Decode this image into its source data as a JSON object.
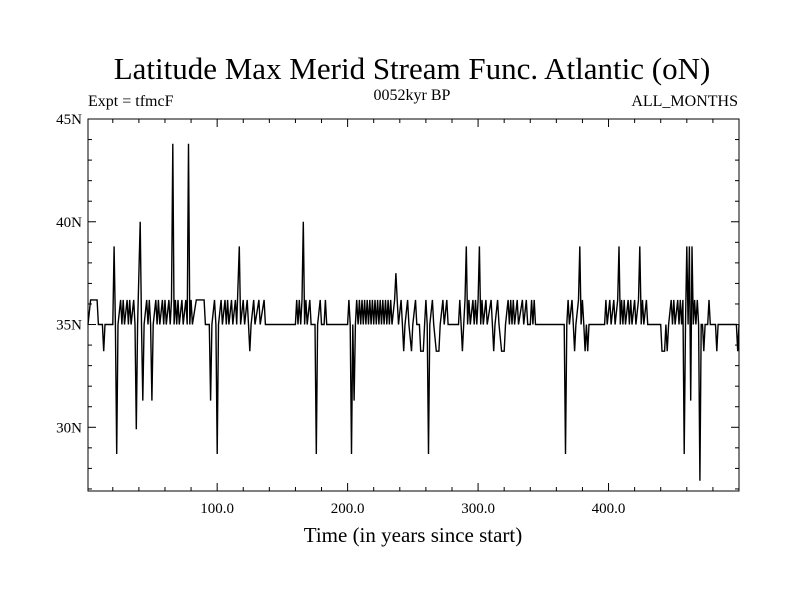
{
  "chart_data": {
    "type": "line",
    "title": "Latitude Max Merid Stream Func. Atlantic (oN)",
    "subtitle_center": "0052kyr BP",
    "subtitle_left": "Expt = tfmcF",
    "subtitle_right": "ALL_MONTHS",
    "xlabel": "Time (in years since start)",
    "ylabel": "",
    "xlim": [
      1,
      500
    ],
    "ylim": [
      26.9,
      45
    ],
    "x_ticks": [
      {
        "value": 100,
        "label": "100.0"
      },
      {
        "value": 200,
        "label": "200.0"
      },
      {
        "value": 300,
        "label": "300.0"
      },
      {
        "value": 400,
        "label": "400.0"
      }
    ],
    "y_ticks": [
      {
        "value": 30,
        "label": "30N"
      },
      {
        "value": 35,
        "label": "35N"
      },
      {
        "value": 40,
        "label": "40N"
      },
      {
        "value": 45,
        "label": "45N"
      }
    ],
    "grid": false,
    "series": [
      {
        "points": [
          [
            1,
            35
          ],
          [
            3,
            36.2
          ],
          [
            8,
            36.2
          ],
          [
            9,
            35
          ],
          [
            12,
            35
          ],
          [
            13,
            33.7
          ],
          [
            14,
            35
          ],
          [
            20,
            35
          ],
          [
            21,
            38.8
          ],
          [
            22,
            35
          ],
          [
            23,
            28.7
          ],
          [
            24,
            35
          ],
          [
            26,
            36.2
          ],
          [
            27,
            35
          ],
          [
            28,
            36.2
          ],
          [
            29,
            35
          ],
          [
            31,
            36.2
          ],
          [
            32,
            35
          ],
          [
            33,
            36.2
          ],
          [
            34,
            35
          ],
          [
            36,
            36.2
          ],
          [
            37,
            35
          ],
          [
            38,
            29.9
          ],
          [
            39,
            35
          ],
          [
            41,
            40
          ],
          [
            42,
            35
          ],
          [
            43,
            31.3
          ],
          [
            44,
            35
          ],
          [
            46,
            36.2
          ],
          [
            47,
            35
          ],
          [
            48,
            36.2
          ],
          [
            49,
            35
          ],
          [
            50,
            31.3
          ],
          [
            51,
            35
          ],
          [
            53,
            36.2
          ],
          [
            54,
            35
          ],
          [
            55,
            36.2
          ],
          [
            56,
            35
          ],
          [
            58,
            36.2
          ],
          [
            59,
            35
          ],
          [
            60,
            36.2
          ],
          [
            61,
            35
          ],
          [
            63,
            36.2
          ],
          [
            64,
            35
          ],
          [
            65,
            36.2
          ],
          [
            66,
            43.8
          ],
          [
            67,
            35
          ],
          [
            68,
            36.2
          ],
          [
            69,
            35
          ],
          [
            70,
            36.2
          ],
          [
            71,
            35
          ],
          [
            73,
            36.2
          ],
          [
            74,
            35
          ],
          [
            76,
            36.2
          ],
          [
            77,
            35
          ],
          [
            78,
            43.8
          ],
          [
            79,
            35
          ],
          [
            80,
            36.2
          ],
          [
            81,
            35
          ],
          [
            84,
            36.2
          ],
          [
            90,
            36.2
          ],
          [
            91,
            35
          ],
          [
            94,
            35
          ],
          [
            95,
            31.3
          ],
          [
            96,
            35
          ],
          [
            98,
            36.2
          ],
          [
            99,
            35
          ],
          [
            100,
            28.7
          ],
          [
            101,
            35
          ],
          [
            103,
            36.2
          ],
          [
            104,
            35
          ],
          [
            106,
            36.2
          ],
          [
            107,
            35
          ],
          [
            108,
            36.2
          ],
          [
            109,
            35
          ],
          [
            111,
            36.2
          ],
          [
            112,
            35
          ],
          [
            114,
            36.2
          ],
          [
            115,
            35
          ],
          [
            117,
            38.8
          ],
          [
            118,
            35
          ],
          [
            120,
            36.2
          ],
          [
            121,
            35
          ],
          [
            123,
            36.2
          ],
          [
            124,
            35
          ],
          [
            125,
            33.7
          ],
          [
            126,
            35
          ],
          [
            128,
            36.2
          ],
          [
            129,
            35
          ],
          [
            132,
            36.2
          ],
          [
            133,
            35
          ],
          [
            136,
            36.2
          ],
          [
            137,
            35
          ],
          [
            160,
            35
          ],
          [
            161,
            36.2
          ],
          [
            162,
            35
          ],
          [
            163,
            36.2
          ],
          [
            164,
            35
          ],
          [
            165,
            36.2
          ],
          [
            166,
            40
          ],
          [
            167,
            35
          ],
          [
            168,
            36.2
          ],
          [
            169,
            35
          ],
          [
            171,
            36.2
          ],
          [
            172,
            35
          ],
          [
            175,
            35
          ],
          [
            176,
            28.7
          ],
          [
            177,
            35
          ],
          [
            179,
            36.2
          ],
          [
            180,
            35
          ],
          [
            182,
            35
          ],
          [
            183,
            36.2
          ],
          [
            184,
            35
          ],
          [
            200,
            35
          ],
          [
            201,
            36.2
          ],
          [
            202,
            35
          ],
          [
            203,
            28.7
          ],
          [
            204,
            35
          ],
          [
            205,
            31.3
          ],
          [
            206,
            35
          ],
          [
            207,
            36.2
          ],
          [
            208,
            35
          ],
          [
            209,
            36.2
          ],
          [
            210,
            35
          ],
          [
            211,
            36.2
          ],
          [
            212,
            35
          ],
          [
            213,
            36.2
          ],
          [
            214,
            35
          ],
          [
            215,
            36.2
          ],
          [
            216,
            35
          ],
          [
            217,
            36.2
          ],
          [
            218,
            35
          ],
          [
            219,
            36.2
          ],
          [
            220,
            35
          ],
          [
            221,
            36.2
          ],
          [
            222,
            35
          ],
          [
            223,
            36.2
          ],
          [
            224,
            35
          ],
          [
            225,
            36.2
          ],
          [
            226,
            35
          ],
          [
            227,
            36.2
          ],
          [
            228,
            35
          ],
          [
            229,
            36.2
          ],
          [
            230,
            35
          ],
          [
            231,
            36.2
          ],
          [
            232,
            35
          ],
          [
            233,
            36.2
          ],
          [
            234,
            35
          ],
          [
            236,
            36.2
          ],
          [
            237,
            37.5
          ],
          [
            238,
            36.2
          ],
          [
            239,
            35
          ],
          [
            241,
            36.2
          ],
          [
            242,
            35
          ],
          [
            243,
            33.7
          ],
          [
            244,
            35
          ],
          [
            246,
            36.2
          ],
          [
            247,
            35
          ],
          [
            249,
            33.7
          ],
          [
            250,
            35
          ],
          [
            252,
            36.2
          ],
          [
            253,
            35
          ],
          [
            255,
            35
          ],
          [
            256,
            33.7
          ],
          [
            258,
            33.7
          ],
          [
            259,
            35
          ],
          [
            260,
            36.2
          ],
          [
            261,
            35
          ],
          [
            262,
            28.7
          ],
          [
            263,
            35
          ],
          [
            265,
            36.2
          ],
          [
            266,
            35
          ],
          [
            268,
            33.7
          ],
          [
            270,
            33.7
          ],
          [
            271,
            35
          ],
          [
            273,
            36.2
          ],
          [
            274,
            35
          ],
          [
            276,
            36.2
          ],
          [
            277,
            35
          ],
          [
            285,
            35
          ],
          [
            286,
            36.2
          ],
          [
            287,
            35
          ],
          [
            288,
            33.7
          ],
          [
            289,
            35
          ],
          [
            290,
            36.2
          ],
          [
            291,
            38.8
          ],
          [
            292,
            35
          ],
          [
            293,
            36.2
          ],
          [
            294,
            35
          ],
          [
            296,
            36.2
          ],
          [
            297,
            35
          ],
          [
            298,
            36.2
          ],
          [
            299,
            35
          ],
          [
            300,
            36.2
          ],
          [
            301,
            38.8
          ],
          [
            302,
            35
          ],
          [
            303,
            36.2
          ],
          [
            304,
            35
          ],
          [
            306,
            36.2
          ],
          [
            307,
            35
          ],
          [
            310,
            36.2
          ],
          [
            311,
            35
          ],
          [
            312,
            33.7
          ],
          [
            313,
            35
          ],
          [
            315,
            36.2
          ],
          [
            316,
            35
          ],
          [
            318,
            33.7
          ],
          [
            320,
            33.7
          ],
          [
            321,
            35
          ],
          [
            323,
            36.2
          ],
          [
            324,
            35
          ],
          [
            325,
            36.2
          ],
          [
            326,
            35
          ],
          [
            327,
            36.2
          ],
          [
            328,
            35
          ],
          [
            330,
            36.2
          ],
          [
            331,
            35
          ],
          [
            334,
            36.2
          ],
          [
            335,
            35
          ],
          [
            337,
            36.2
          ],
          [
            338,
            35
          ],
          [
            340,
            35
          ],
          [
            341,
            36.2
          ],
          [
            342,
            35
          ],
          [
            343,
            36.2
          ],
          [
            344,
            35
          ],
          [
            366,
            35
          ],
          [
            367,
            28.7
          ],
          [
            368,
            35
          ],
          [
            369,
            36.2
          ],
          [
            370,
            35
          ],
          [
            372,
            36.2
          ],
          [
            373,
            35
          ],
          [
            374,
            33.7
          ],
          [
            375,
            35
          ],
          [
            377,
            36.2
          ],
          [
            378,
            38.8
          ],
          [
            379,
            35
          ],
          [
            380,
            36.2
          ],
          [
            381,
            35
          ],
          [
            382,
            33.7
          ],
          [
            383,
            35
          ],
          [
            384,
            33.7
          ],
          [
            385,
            35
          ],
          [
            397,
            35
          ],
          [
            398,
            36.2
          ],
          [
            399,
            35
          ],
          [
            401,
            36.2
          ],
          [
            402,
            35
          ],
          [
            404,
            36.2
          ],
          [
            405,
            35
          ],
          [
            407,
            36.2
          ],
          [
            408,
            38.8
          ],
          [
            409,
            35
          ],
          [
            410,
            36.2
          ],
          [
            411,
            35
          ],
          [
            412,
            36.2
          ],
          [
            413,
            35
          ],
          [
            415,
            36.2
          ],
          [
            416,
            35
          ],
          [
            417,
            36.2
          ],
          [
            418,
            35
          ],
          [
            420,
            36.2
          ],
          [
            421,
            35
          ],
          [
            423,
            36.2
          ],
          [
            424,
            38.8
          ],
          [
            425,
            35
          ],
          [
            426,
            36.2
          ],
          [
            427,
            35
          ],
          [
            429,
            36.2
          ],
          [
            430,
            35
          ],
          [
            440,
            35
          ],
          [
            441,
            33.7
          ],
          [
            443,
            33.7
          ],
          [
            444,
            35
          ],
          [
            445,
            33.7
          ],
          [
            446,
            35
          ],
          [
            448,
            36.2
          ],
          [
            449,
            35
          ],
          [
            450,
            36.2
          ],
          [
            451,
            35
          ],
          [
            453,
            36.2
          ],
          [
            454,
            35
          ],
          [
            455,
            36.2
          ],
          [
            456,
            35
          ],
          [
            457,
            36.2
          ],
          [
            458,
            28.7
          ],
          [
            459,
            35
          ],
          [
            460,
            38.8
          ],
          [
            461,
            35
          ],
          [
            462,
            38.8
          ],
          [
            463,
            31.3
          ],
          [
            464,
            38.8
          ],
          [
            465,
            35
          ],
          [
            466,
            36.2
          ],
          [
            467,
            35
          ],
          [
            468,
            36.2
          ],
          [
            469,
            35
          ],
          [
            470,
            27.4
          ],
          [
            471,
            35
          ],
          [
            472,
            35
          ],
          [
            473,
            33.7
          ],
          [
            474,
            35
          ],
          [
            476,
            35
          ],
          [
            477,
            36.2
          ],
          [
            478,
            35
          ],
          [
            482,
            35
          ],
          [
            483,
            33.7
          ],
          [
            484,
            35
          ],
          [
            498,
            35
          ],
          [
            499,
            33.7
          ],
          [
            500,
            35
          ]
        ]
      }
    ]
  }
}
